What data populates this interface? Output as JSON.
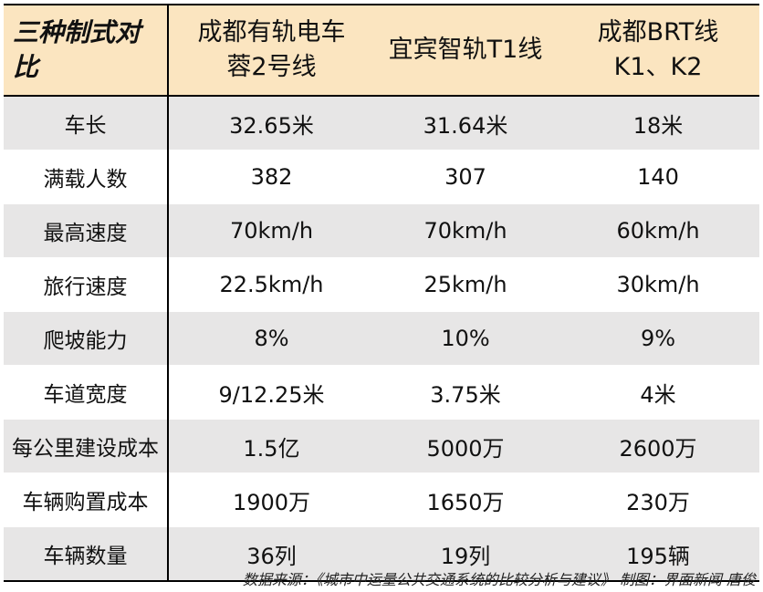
{
  "table": {
    "header": [
      [
        "三种制式对",
        "比"
      ],
      [
        "成都有轨电车",
        "蓉2号线"
      ],
      [
        "宜宾智轨T1线"
      ],
      [
        "成都BRT线",
        "K1、K2"
      ]
    ],
    "rows": [
      [
        "车长",
        "32.65米",
        "31.64米",
        "18米"
      ],
      [
        "满载人数",
        "382",
        "307",
        "140"
      ],
      [
        "最高速度",
        "70km/h",
        "70km/h",
        "60km/h"
      ],
      [
        "旅行速度",
        "22.5km/h",
        "25km/h",
        "30km/h"
      ],
      [
        "爬坡能力",
        "8%",
        "10%",
        "9%"
      ],
      [
        "车道宽度",
        "9/12.25米",
        "3.75米",
        "4米"
      ],
      [
        "每公里建设成本",
        "1.5亿",
        "5000万",
        "2600万"
      ],
      [
        "车辆购置成本",
        "1900万",
        "1650万",
        "230万"
      ],
      [
        "车辆数量",
        "36列",
        "19列",
        "195辆"
      ]
    ]
  },
  "footer": {
    "note": "数据来源：《城市中运量公共交通系统的比较分析与建议》 制图：界面新闻 唐俊"
  }
}
